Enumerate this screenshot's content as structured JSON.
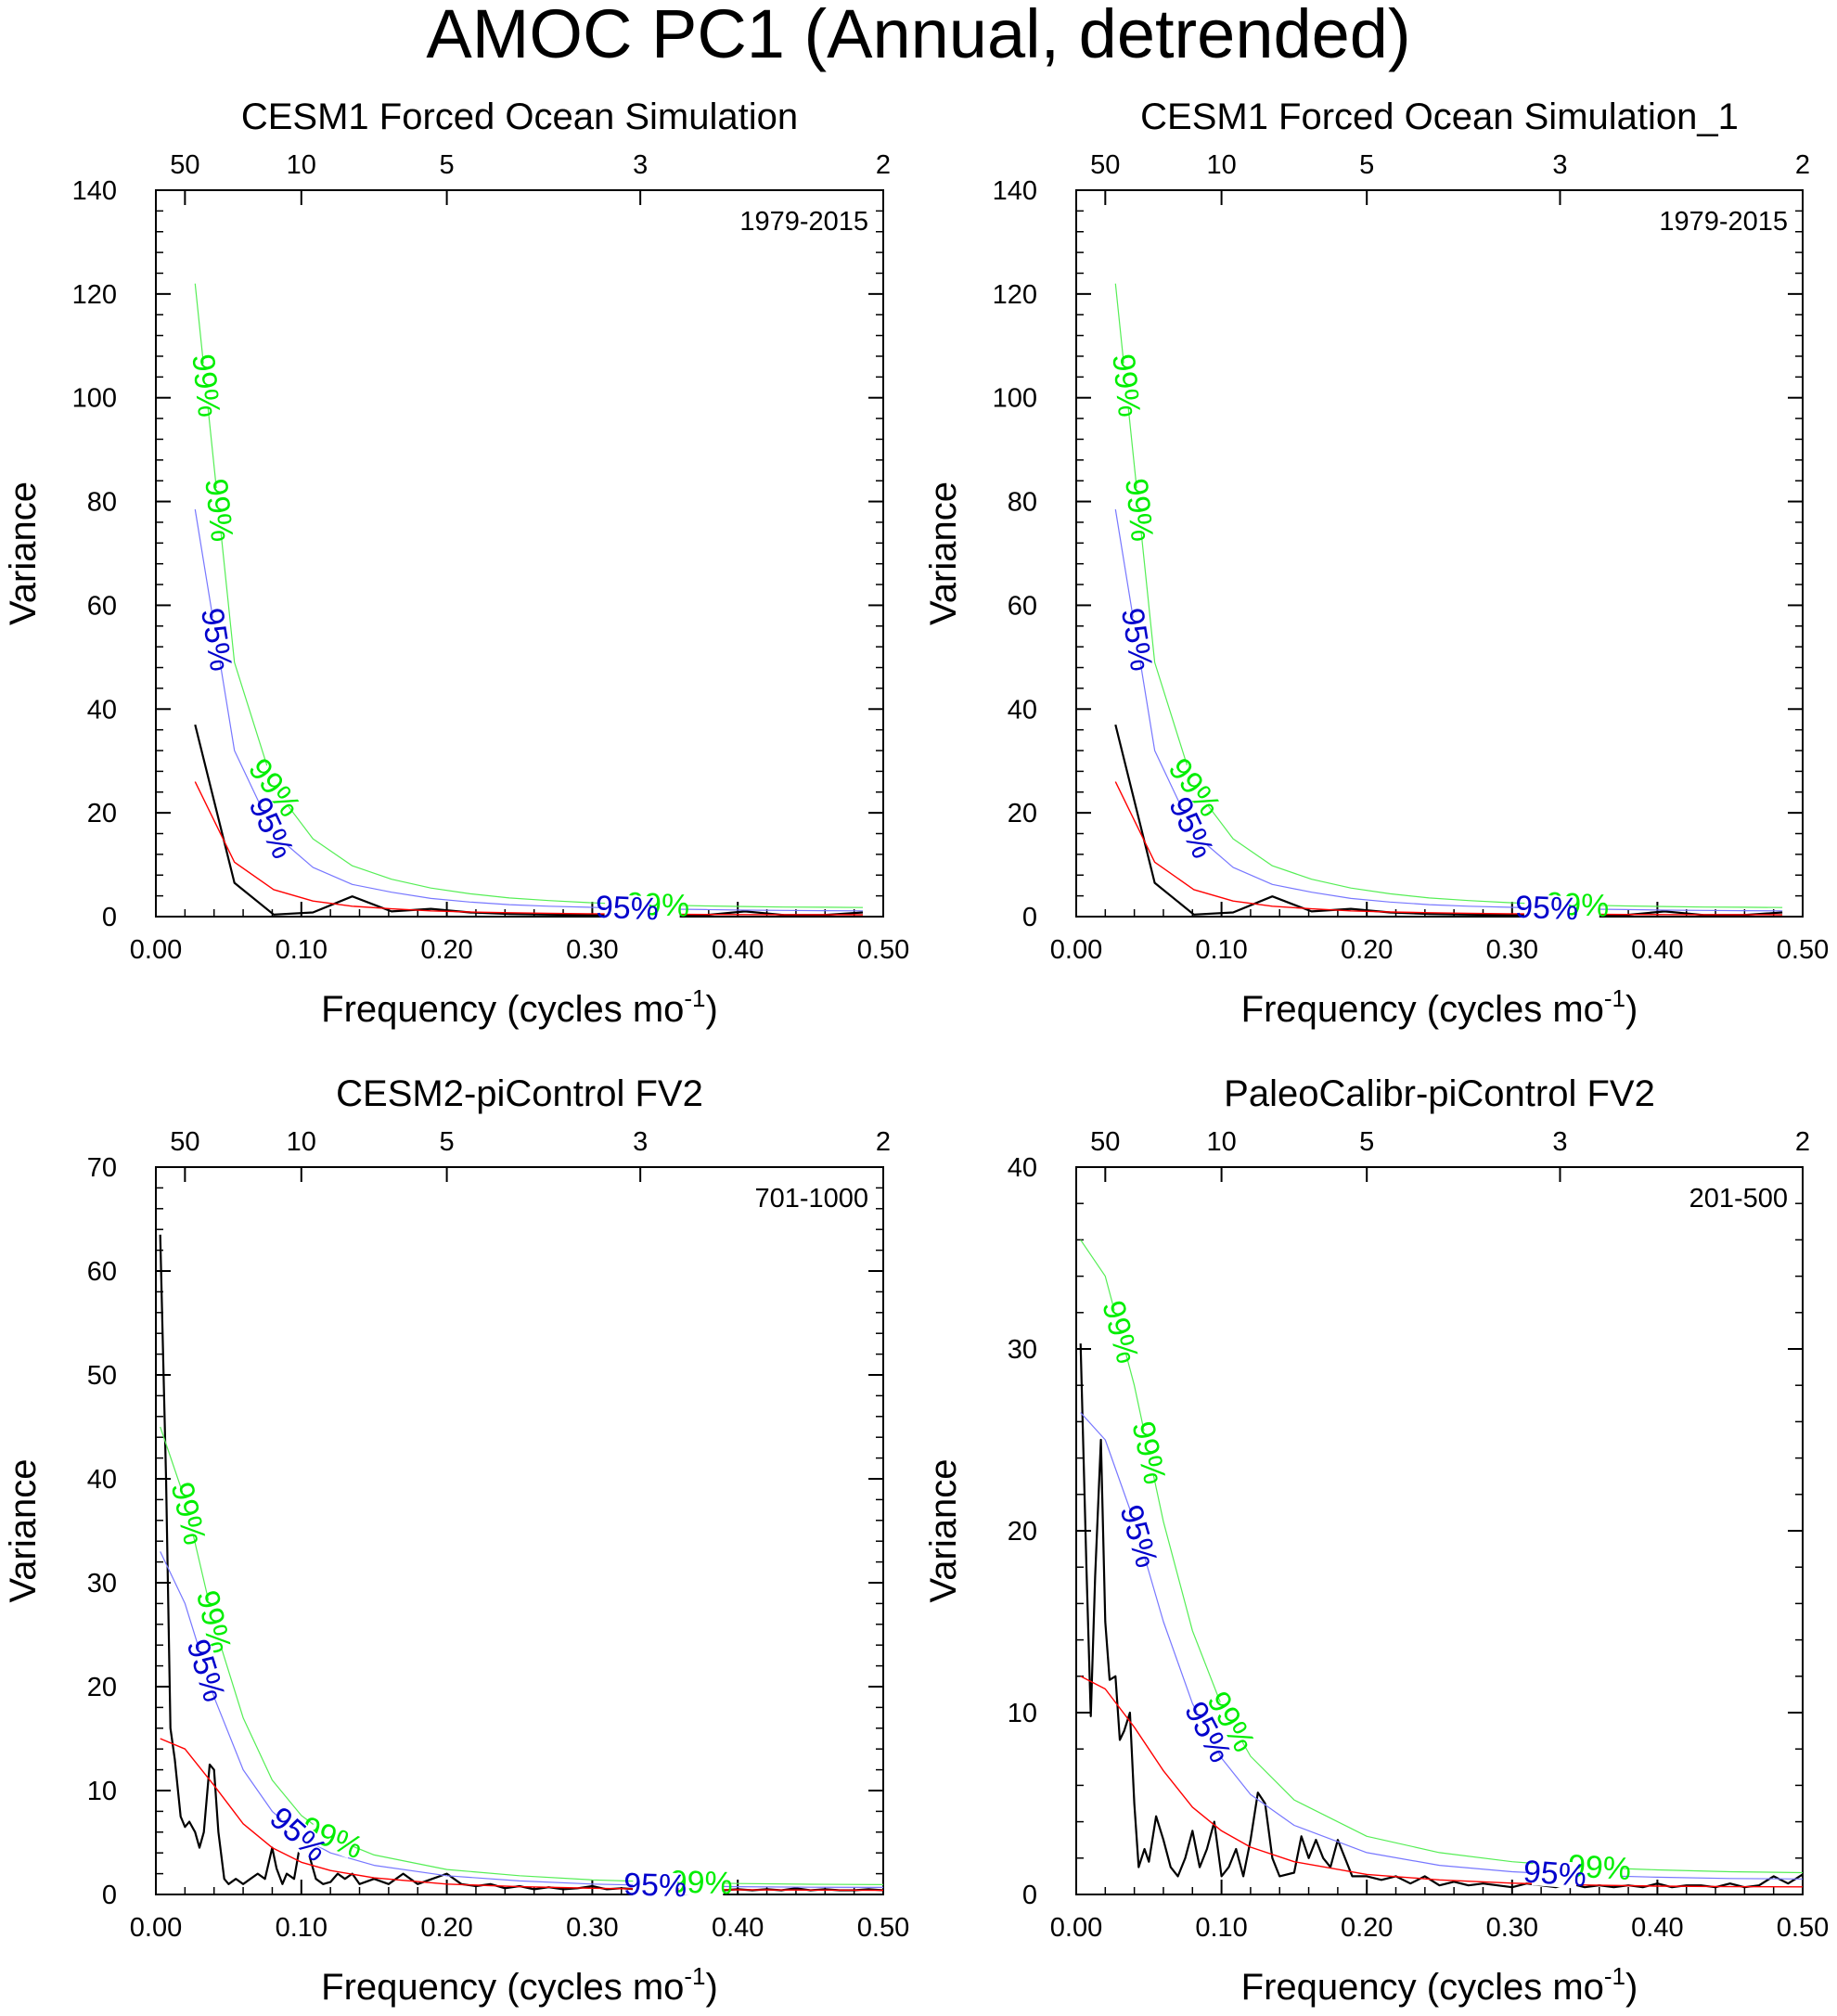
{
  "figure_title": "AMOC PC1 (Annual, detrended)",
  "colors": {
    "spectrum": "#000000",
    "red_noise": "#ff0000",
    "conf95": "#0000cc",
    "conf99": "#00ee00",
    "conf95_line": "#7777ff",
    "conf99_line": "#55ee55"
  },
  "chart_data": [
    {
      "type": "line",
      "title": "CESM1 Forced Ocean Simulation",
      "period_label": "1979-2015",
      "xlabel": "Frequency (cycles mo",
      "xlabel_sup": "-1",
      "xlabel_end": ")",
      "ylabel": "Variance",
      "xlim": [
        0,
        0.5
      ],
      "ylim": [
        0,
        140
      ],
      "xticks": [
        "0.00",
        "0.10",
        "0.20",
        "0.30",
        "0.40",
        "0.50"
      ],
      "yticks": [
        "0",
        "20",
        "40",
        "60",
        "80",
        "100",
        "120",
        "140"
      ],
      "top_axis_ticks": [
        [
          "50",
          0.02
        ],
        [
          "10",
          0.1
        ],
        [
          "5",
          0.2
        ],
        [
          "3",
          0.333
        ],
        [
          "2",
          0.5
        ]
      ],
      "pct95": "95%",
      "pct99": "99%",
      "series": [
        {
          "name": "spectrum",
          "x": [
            0.027,
            0.054,
            0.081,
            0.108,
            0.135,
            0.162,
            0.189,
            0.216,
            0.243,
            0.27,
            0.297,
            0.324,
            0.351,
            0.378,
            0.405,
            0.432,
            0.459,
            0.486
          ],
          "values": [
            37,
            6.5,
            0.4,
            0.8,
            3.9,
            1.0,
            1.5,
            0.8,
            0.5,
            0.4,
            0.3,
            0.4,
            0.3,
            0.3,
            1.0,
            0.3,
            0.3,
            0.8
          ]
        },
        {
          "name": "red_noise",
          "x": [
            0.027,
            0.054,
            0.081,
            0.108,
            0.135,
            0.162,
            0.189,
            0.216,
            0.243,
            0.27,
            0.297,
            0.324,
            0.351,
            0.378,
            0.405,
            0.432,
            0.459,
            0.486
          ],
          "values": [
            26,
            10.5,
            5.2,
            3.0,
            2.0,
            1.5,
            1.1,
            0.9,
            0.75,
            0.65,
            0.55,
            0.5,
            0.45,
            0.42,
            0.4,
            0.38,
            0.37,
            0.36
          ]
        },
        {
          "name": "95%",
          "x": [
            0.027,
            0.054,
            0.081,
            0.108,
            0.135,
            0.162,
            0.189,
            0.216,
            0.243,
            0.27,
            0.297,
            0.324,
            0.351,
            0.378,
            0.405,
            0.432,
            0.459,
            0.486
          ],
          "values": [
            78.5,
            32,
            16,
            9.5,
            6.2,
            4.7,
            3.5,
            2.8,
            2.3,
            2.0,
            1.8,
            1.6,
            1.45,
            1.35,
            1.25,
            1.2,
            1.15,
            1.1
          ]
        },
        {
          "name": "99%",
          "x": [
            0.027,
            0.054,
            0.081,
            0.108,
            0.135,
            0.162,
            0.189,
            0.216,
            0.243,
            0.27,
            0.297,
            0.324,
            0.351,
            0.378,
            0.405,
            0.432,
            0.459,
            0.486
          ],
          "values": [
            122,
            49,
            25,
            15,
            9.8,
            7.2,
            5.5,
            4.4,
            3.6,
            3.1,
            2.7,
            2.4,
            2.2,
            2.05,
            1.95,
            1.85,
            1.8,
            1.75
          ]
        }
      ]
    },
    {
      "type": "line",
      "title": "CESM1 Forced Ocean Simulation_1",
      "period_label": "1979-2015",
      "xlabel": "Frequency (cycles mo",
      "xlabel_sup": "-1",
      "xlabel_end": ")",
      "ylabel": "Variance",
      "xlim": [
        0,
        0.5
      ],
      "ylim": [
        0,
        140
      ],
      "xticks": [
        "0.00",
        "0.10",
        "0.20",
        "0.30",
        "0.40",
        "0.50"
      ],
      "yticks": [
        "0",
        "20",
        "40",
        "60",
        "80",
        "100",
        "120",
        "140"
      ],
      "top_axis_ticks": [
        [
          "50",
          0.02
        ],
        [
          "10",
          0.1
        ],
        [
          "5",
          0.2
        ],
        [
          "3",
          0.333
        ],
        [
          "2",
          0.5
        ]
      ],
      "pct95": "95%",
      "pct99": "99%",
      "series": [
        {
          "name": "spectrum",
          "x": [
            0.027,
            0.054,
            0.081,
            0.108,
            0.135,
            0.162,
            0.189,
            0.216,
            0.243,
            0.27,
            0.297,
            0.324,
            0.351,
            0.378,
            0.405,
            0.432,
            0.459,
            0.486
          ],
          "values": [
            37,
            6.5,
            0.4,
            0.8,
            3.9,
            1.0,
            1.5,
            0.8,
            0.5,
            0.4,
            0.3,
            0.4,
            0.3,
            0.3,
            1.0,
            0.3,
            0.3,
            0.8
          ]
        },
        {
          "name": "red_noise",
          "x": [
            0.027,
            0.054,
            0.081,
            0.108,
            0.135,
            0.162,
            0.189,
            0.216,
            0.243,
            0.27,
            0.297,
            0.324,
            0.351,
            0.378,
            0.405,
            0.432,
            0.459,
            0.486
          ],
          "values": [
            26,
            10.5,
            5.2,
            3.0,
            2.0,
            1.5,
            1.1,
            0.9,
            0.75,
            0.65,
            0.55,
            0.5,
            0.45,
            0.42,
            0.4,
            0.38,
            0.37,
            0.36
          ]
        },
        {
          "name": "95%",
          "x": [
            0.027,
            0.054,
            0.081,
            0.108,
            0.135,
            0.162,
            0.189,
            0.216,
            0.243,
            0.27,
            0.297,
            0.324,
            0.351,
            0.378,
            0.405,
            0.432,
            0.459,
            0.486
          ],
          "values": [
            78.5,
            32,
            16,
            9.5,
            6.2,
            4.7,
            3.5,
            2.8,
            2.3,
            2.0,
            1.8,
            1.6,
            1.45,
            1.35,
            1.25,
            1.2,
            1.15,
            1.1
          ]
        },
        {
          "name": "99%",
          "x": [
            0.027,
            0.054,
            0.081,
            0.108,
            0.135,
            0.162,
            0.189,
            0.216,
            0.243,
            0.27,
            0.297,
            0.324,
            0.351,
            0.378,
            0.405,
            0.432,
            0.459,
            0.486
          ],
          "values": [
            122,
            49,
            25,
            15,
            9.8,
            7.2,
            5.5,
            4.4,
            3.6,
            3.1,
            2.7,
            2.4,
            2.2,
            2.05,
            1.95,
            1.85,
            1.8,
            1.75
          ]
        }
      ]
    },
    {
      "type": "line",
      "title": "CESM2-piControl FV2",
      "period_label": "701-1000",
      "xlabel": "Frequency (cycles mo",
      "xlabel_sup": "-1",
      "xlabel_end": ")",
      "ylabel": "Variance",
      "xlim": [
        0,
        0.5
      ],
      "ylim": [
        0,
        70
      ],
      "xticks": [
        "0.00",
        "0.10",
        "0.20",
        "0.30",
        "0.40",
        "0.50"
      ],
      "yticks": [
        "0",
        "10",
        "20",
        "30",
        "40",
        "50",
        "60",
        "70"
      ],
      "top_axis_ticks": [
        [
          "50",
          0.02
        ],
        [
          "10",
          0.1
        ],
        [
          "5",
          0.2
        ],
        [
          "3",
          0.333
        ],
        [
          "2",
          0.5
        ]
      ],
      "pct95": "95%",
      "pct99": "99%",
      "series": [
        {
          "name": "spectrum",
          "x": [
            0.003,
            0.007,
            0.01,
            0.013,
            0.017,
            0.02,
            0.023,
            0.027,
            0.03,
            0.033,
            0.037,
            0.04,
            0.043,
            0.047,
            0.05,
            0.055,
            0.06,
            0.065,
            0.07,
            0.075,
            0.08,
            0.083,
            0.087,
            0.09,
            0.095,
            0.1,
            0.105,
            0.11,
            0.115,
            0.12,
            0.125,
            0.13,
            0.135,
            0.14,
            0.15,
            0.16,
            0.17,
            0.18,
            0.19,
            0.2,
            0.21,
            0.22,
            0.23,
            0.24,
            0.25,
            0.26,
            0.27,
            0.28,
            0.29,
            0.3,
            0.31,
            0.32,
            0.33,
            0.34,
            0.35,
            0.36,
            0.37,
            0.38,
            0.39,
            0.4,
            0.41,
            0.42,
            0.43,
            0.44,
            0.45,
            0.46,
            0.47,
            0.48,
            0.49,
            0.5
          ],
          "values": [
            63.5,
            40,
            16,
            13,
            7.5,
            6.5,
            7,
            6,
            4.5,
            6,
            12.5,
            12,
            6,
            1.5,
            1.0,
            1.5,
            1.0,
            1.5,
            2.0,
            1.5,
            4.5,
            2.5,
            1.0,
            2.0,
            1.5,
            5.5,
            4,
            1.5,
            1.0,
            1.2,
            2.0,
            1.5,
            2.0,
            1.0,
            1.5,
            1.0,
            2.0,
            1.0,
            1.5,
            2.0,
            1.0,
            0.8,
            1.0,
            0.6,
            0.8,
            0.5,
            0.7,
            0.5,
            0.6,
            0.8,
            0.5,
            0.6,
            0.5,
            0.6,
            0.4,
            0.5,
            0.4,
            0.6,
            0.4,
            0.5,
            0.4,
            0.5,
            0.4,
            0.6,
            0.4,
            0.5,
            0.4,
            0.4,
            0.5,
            0.4
          ]
        },
        {
          "name": "red_noise",
          "x": [
            0.003,
            0.02,
            0.04,
            0.06,
            0.08,
            0.1,
            0.12,
            0.15,
            0.2,
            0.25,
            0.3,
            0.35,
            0.4,
            0.45,
            0.5
          ],
          "values": [
            15,
            14,
            10.5,
            6.8,
            4.5,
            3.1,
            2.3,
            1.6,
            1.0,
            0.75,
            0.6,
            0.5,
            0.45,
            0.42,
            0.4
          ]
        },
        {
          "name": "95%",
          "x": [
            0.003,
            0.02,
            0.04,
            0.06,
            0.08,
            0.1,
            0.12,
            0.15,
            0.2,
            0.25,
            0.3,
            0.35,
            0.4,
            0.45,
            0.5
          ],
          "values": [
            33,
            28,
            19,
            12,
            8,
            5.5,
            4.0,
            2.8,
            1.8,
            1.3,
            1.0,
            0.85,
            0.75,
            0.7,
            0.68
          ]
        },
        {
          "name": "99%",
          "x": [
            0.003,
            0.02,
            0.04,
            0.06,
            0.08,
            0.1,
            0.12,
            0.15,
            0.2,
            0.25,
            0.3,
            0.35,
            0.4,
            0.45,
            0.5
          ],
          "values": [
            45,
            38,
            26,
            17,
            11,
            7.6,
            5.5,
            3.8,
            2.4,
            1.8,
            1.4,
            1.2,
            1.05,
            0.98,
            0.95
          ]
        }
      ]
    },
    {
      "type": "line",
      "title": "PaleoCalibr-piControl FV2",
      "period_label": "201-500",
      "xlabel": "Frequency (cycles mo",
      "xlabel_sup": "-1",
      "xlabel_end": ")",
      "ylabel": "Variance",
      "xlim": [
        0,
        0.5
      ],
      "ylim": [
        0,
        40
      ],
      "xticks": [
        "0.00",
        "0.10",
        "0.20",
        "0.30",
        "0.40",
        "0.50"
      ],
      "yticks": [
        "0",
        "10",
        "20",
        "30",
        "40"
      ],
      "top_axis_ticks": [
        [
          "50",
          0.02
        ],
        [
          "10",
          0.1
        ],
        [
          "5",
          0.2
        ],
        [
          "3",
          0.333
        ],
        [
          "2",
          0.5
        ]
      ],
      "pct95": "95%",
      "pct99": "99%",
      "series": [
        {
          "name": "spectrum",
          "x": [
            0.003,
            0.007,
            0.01,
            0.013,
            0.017,
            0.02,
            0.023,
            0.027,
            0.03,
            0.033,
            0.037,
            0.04,
            0.043,
            0.047,
            0.05,
            0.055,
            0.06,
            0.065,
            0.07,
            0.075,
            0.08,
            0.085,
            0.09,
            0.095,
            0.1,
            0.105,
            0.11,
            0.115,
            0.12,
            0.125,
            0.13,
            0.135,
            0.14,
            0.15,
            0.155,
            0.16,
            0.165,
            0.17,
            0.175,
            0.18,
            0.19,
            0.2,
            0.21,
            0.22,
            0.23,
            0.24,
            0.25,
            0.26,
            0.27,
            0.28,
            0.29,
            0.3,
            0.31,
            0.32,
            0.33,
            0.34,
            0.35,
            0.36,
            0.37,
            0.38,
            0.39,
            0.4,
            0.41,
            0.42,
            0.43,
            0.44,
            0.45,
            0.46,
            0.47,
            0.48,
            0.49,
            0.5
          ],
          "values": [
            30.3,
            18,
            9.8,
            17.5,
            25,
            15,
            11.8,
            12,
            8.5,
            9,
            10,
            5,
            1.5,
            2.5,
            1.8,
            4.3,
            3,
            1.5,
            1.0,
            2.0,
            3.5,
            1.5,
            2.5,
            4.0,
            1.0,
            1.5,
            2.5,
            1.0,
            3.0,
            5.6,
            5.0,
            2.0,
            1.0,
            1.2,
            3.2,
            2.0,
            3.0,
            2.0,
            1.5,
            3.0,
            1.0,
            1.0,
            0.8,
            1.0,
            0.6,
            1.0,
            0.5,
            0.7,
            0.5,
            0.6,
            0.5,
            0.4,
            0.6,
            0.5,
            0.4,
            0.6,
            0.4,
            0.5,
            0.4,
            0.5,
            0.4,
            0.6,
            0.4,
            0.5,
            0.5,
            0.4,
            0.6,
            0.4,
            0.5,
            1.0,
            0.6,
            1.1
          ]
        },
        {
          "name": "red_noise",
          "x": [
            0.003,
            0.02,
            0.04,
            0.06,
            0.08,
            0.1,
            0.12,
            0.15,
            0.2,
            0.25,
            0.3,
            0.35,
            0.4,
            0.45,
            0.5
          ],
          "values": [
            12,
            11.3,
            9.2,
            6.8,
            4.8,
            3.5,
            2.6,
            1.8,
            1.1,
            0.8,
            0.62,
            0.52,
            0.46,
            0.43,
            0.42
          ]
        },
        {
          "name": "95%",
          "x": [
            0.003,
            0.02,
            0.04,
            0.06,
            0.08,
            0.1,
            0.12,
            0.15,
            0.2,
            0.25,
            0.3,
            0.35,
            0.4,
            0.45,
            0.5
          ],
          "values": [
            26.5,
            25,
            20.5,
            15,
            10.5,
            7.5,
            5.5,
            3.8,
            2.3,
            1.6,
            1.25,
            1.05,
            0.95,
            0.88,
            0.85
          ]
        },
        {
          "name": "99%",
          "x": [
            0.003,
            0.02,
            0.04,
            0.06,
            0.08,
            0.1,
            0.12,
            0.15,
            0.2,
            0.25,
            0.3,
            0.35,
            0.4,
            0.45,
            0.5
          ],
          "values": [
            36,
            34,
            28,
            20.5,
            14.5,
            10.4,
            7.6,
            5.2,
            3.2,
            2.3,
            1.8,
            1.5,
            1.35,
            1.25,
            1.2
          ]
        }
      ]
    }
  ]
}
